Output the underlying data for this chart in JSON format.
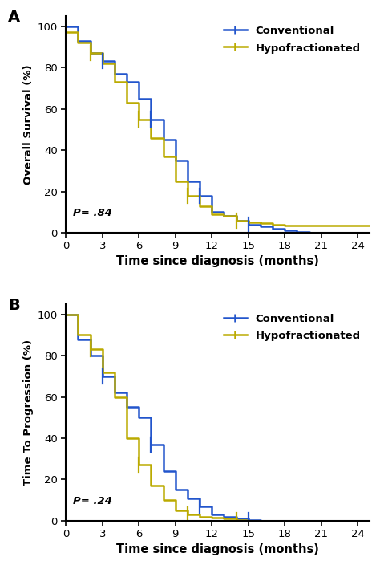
{
  "panel_A": {
    "label": "A",
    "ylabel": "Overall Survival (%)",
    "pvalue": "P= .84",
    "conventional_t": [
      0,
      1,
      2,
      3,
      4,
      5,
      6,
      7,
      8,
      9,
      10,
      11,
      12,
      13,
      14,
      15,
      16,
      17,
      18,
      19,
      20
    ],
    "conventional_s": [
      100,
      93,
      87,
      83,
      77,
      73,
      65,
      55,
      45,
      35,
      25,
      18,
      10,
      8,
      6,
      4,
      3,
      2,
      1,
      0.5,
      0
    ],
    "hypo_t": [
      0,
      1,
      2,
      3,
      4,
      5,
      6,
      7,
      8,
      9,
      10,
      11,
      12,
      13,
      14,
      15,
      16,
      17,
      18,
      24
    ],
    "hypo_s": [
      97,
      92,
      87,
      82,
      73,
      63,
      55,
      46,
      37,
      25,
      18,
      13,
      9,
      8,
      6,
      5,
      4.5,
      4,
      3.5,
      3.5
    ]
  },
  "panel_B": {
    "label": "B",
    "ylabel": "Time To Progression (%)",
    "pvalue": "P= .24",
    "conventional_t": [
      0,
      1,
      2,
      3,
      4,
      5,
      6,
      7,
      8,
      9,
      10,
      11,
      12,
      13,
      14,
      15,
      16
    ],
    "conventional_s": [
      100,
      88,
      80,
      70,
      62,
      55,
      50,
      37,
      24,
      15,
      11,
      7,
      3,
      2,
      1,
      0.5,
      0
    ],
    "hypo_t": [
      0,
      1,
      2,
      3,
      4,
      5,
      6,
      7,
      8,
      9,
      10,
      11,
      12,
      13,
      14,
      15,
      16
    ],
    "hypo_s": [
      100,
      90,
      83,
      72,
      60,
      40,
      27,
      17,
      10,
      5,
      3,
      2,
      1.5,
      1,
      0.5,
      0,
      0
    ]
  },
  "colors": {
    "conventional": "#2255cc",
    "hypo": "#bbaa00"
  },
  "xlabel": "Time since diagnosis (months)",
  "xlim": [
    0,
    25
  ],
  "ylim": [
    0,
    105
  ],
  "xticks": [
    0,
    3,
    6,
    9,
    12,
    15,
    18,
    21,
    24
  ],
  "yticks": [
    0,
    20,
    40,
    60,
    80,
    100
  ]
}
